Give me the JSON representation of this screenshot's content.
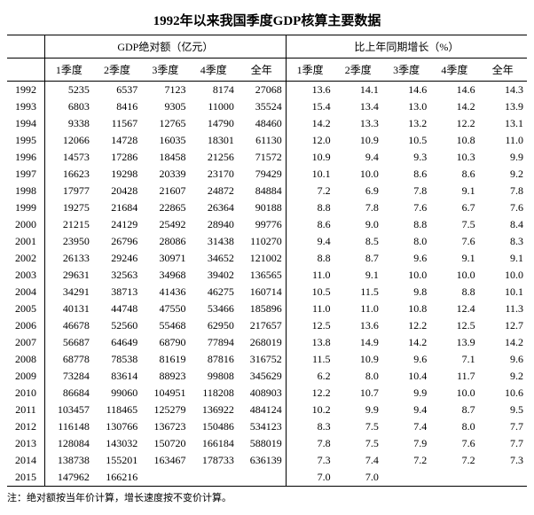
{
  "title": "1992年以来我国季度GDP核算主要数据",
  "group_headers": {
    "absolute": "GDP绝对额（亿元）",
    "growth": "比上年同期增长（%）"
  },
  "sub_headers": [
    "1季度",
    "2季度",
    "3季度",
    "4季度",
    "全年",
    "1季度",
    "2季度",
    "3季度",
    "4季度",
    "全年"
  ],
  "rows": [
    {
      "year": "1992",
      "v": [
        "5235",
        "6537",
        "7123",
        "8174",
        "27068",
        "13.6",
        "14.1",
        "14.6",
        "14.6",
        "14.3"
      ]
    },
    {
      "year": "1993",
      "v": [
        "6803",
        "8416",
        "9305",
        "11000",
        "35524",
        "15.4",
        "13.4",
        "13.0",
        "14.2",
        "13.9"
      ]
    },
    {
      "year": "1994",
      "v": [
        "9338",
        "11567",
        "12765",
        "14790",
        "48460",
        "14.2",
        "13.3",
        "13.2",
        "12.2",
        "13.1"
      ]
    },
    {
      "year": "1995",
      "v": [
        "12066",
        "14728",
        "16035",
        "18301",
        "61130",
        "12.0",
        "10.9",
        "10.5",
        "10.8",
        "11.0"
      ]
    },
    {
      "year": "1996",
      "v": [
        "14573",
        "17286",
        "18458",
        "21256",
        "71572",
        "10.9",
        "9.4",
        "9.3",
        "10.3",
        "9.9"
      ]
    },
    {
      "year": "1997",
      "v": [
        "16623",
        "19298",
        "20339",
        "23170",
        "79429",
        "10.1",
        "10.0",
        "8.6",
        "8.6",
        "9.2"
      ]
    },
    {
      "year": "1998",
      "v": [
        "17977",
        "20428",
        "21607",
        "24872",
        "84884",
        "7.2",
        "6.9",
        "7.8",
        "9.1",
        "7.8"
      ]
    },
    {
      "year": "1999",
      "v": [
        "19275",
        "21684",
        "22865",
        "26364",
        "90188",
        "8.8",
        "7.8",
        "7.6",
        "6.7",
        "7.6"
      ]
    },
    {
      "year": "2000",
      "v": [
        "21215",
        "24129",
        "25492",
        "28940",
        "99776",
        "8.6",
        "9.0",
        "8.8",
        "7.5",
        "8.4"
      ]
    },
    {
      "year": "2001",
      "v": [
        "23950",
        "26796",
        "28086",
        "31438",
        "110270",
        "9.4",
        "8.5",
        "8.0",
        "7.6",
        "8.3"
      ]
    },
    {
      "year": "2002",
      "v": [
        "26133",
        "29246",
        "30971",
        "34652",
        "121002",
        "8.8",
        "8.7",
        "9.6",
        "9.1",
        "9.1"
      ]
    },
    {
      "year": "2003",
      "v": [
        "29631",
        "32563",
        "34968",
        "39402",
        "136565",
        "11.0",
        "9.1",
        "10.0",
        "10.0",
        "10.0"
      ]
    },
    {
      "year": "2004",
      "v": [
        "34291",
        "38713",
        "41436",
        "46275",
        "160714",
        "10.5",
        "11.5",
        "9.8",
        "8.8",
        "10.1"
      ]
    },
    {
      "year": "2005",
      "v": [
        "40131",
        "44748",
        "47550",
        "53466",
        "185896",
        "11.0",
        "11.0",
        "10.8",
        "12.4",
        "11.3"
      ]
    },
    {
      "year": "2006",
      "v": [
        "46678",
        "52560",
        "55468",
        "62950",
        "217657",
        "12.5",
        "13.6",
        "12.2",
        "12.5",
        "12.7"
      ]
    },
    {
      "year": "2007",
      "v": [
        "56687",
        "64649",
        "68790",
        "77894",
        "268019",
        "13.8",
        "14.9",
        "14.2",
        "13.9",
        "14.2"
      ]
    },
    {
      "year": "2008",
      "v": [
        "68778",
        "78538",
        "81619",
        "87816",
        "316752",
        "11.5",
        "10.9",
        "9.6",
        "7.1",
        "9.6"
      ]
    },
    {
      "year": "2009",
      "v": [
        "73284",
        "83614",
        "88923",
        "99808",
        "345629",
        "6.2",
        "8.0",
        "10.4",
        "11.7",
        "9.2"
      ]
    },
    {
      "year": "2010",
      "v": [
        "86684",
        "99060",
        "104951",
        "118208",
        "408903",
        "12.2",
        "10.7",
        "9.9",
        "10.0",
        "10.6"
      ]
    },
    {
      "year": "2011",
      "v": [
        "103457",
        "118465",
        "125279",
        "136922",
        "484124",
        "10.2",
        "9.9",
        "9.4",
        "8.7",
        "9.5"
      ]
    },
    {
      "year": "2012",
      "v": [
        "116148",
        "130766",
        "136723",
        "150486",
        "534123",
        "8.3",
        "7.5",
        "7.4",
        "8.0",
        "7.7"
      ]
    },
    {
      "year": "2013",
      "v": [
        "128084",
        "143032",
        "150720",
        "166184",
        "588019",
        "7.8",
        "7.5",
        "7.9",
        "7.6",
        "7.7"
      ]
    },
    {
      "year": "2014",
      "v": [
        "138738",
        "155201",
        "163467",
        "178733",
        "636139",
        "7.3",
        "7.4",
        "7.2",
        "7.2",
        "7.3"
      ]
    },
    {
      "year": "2015",
      "v": [
        "147962",
        "166216",
        "",
        "",
        "",
        "7.0",
        "7.0",
        "",
        "",
        ""
      ]
    }
  ],
  "footnote": "注：绝对额按当年价计算，增长速度按不变价计算。"
}
